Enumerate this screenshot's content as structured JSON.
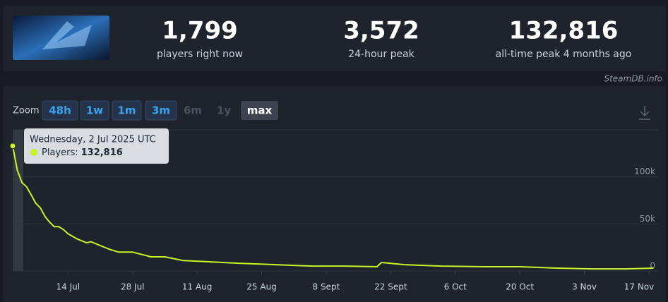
{
  "stats": [
    {
      "value": "1,799",
      "label": "players right now"
    },
    {
      "value": "3,572",
      "label": "24-hour peak"
    },
    {
      "value": "132,816",
      "label": "all-time peak 4 months ago"
    }
  ],
  "watermark": "SteamDB.info",
  "zoom": {
    "label": "Zoom",
    "buttons": [
      {
        "label": "48h",
        "enabled": true,
        "selected": false
      },
      {
        "label": "1w",
        "enabled": true,
        "selected": false
      },
      {
        "label": "1m",
        "enabled": true,
        "selected": false
      },
      {
        "label": "3m",
        "enabled": true,
        "selected": false
      },
      {
        "label": "6m",
        "enabled": false,
        "selected": false
      },
      {
        "label": "1y",
        "enabled": false,
        "selected": false
      },
      {
        "label": "max",
        "enabled": true,
        "selected": true
      }
    ]
  },
  "tooltip": {
    "date": "Wednesday, 2 Jul 2025 UTC",
    "label": "Players:",
    "value": "132,816"
  },
  "chart_data": {
    "type": "line",
    "x": [
      "2025-07-02",
      "2025-07-03",
      "2025-07-04",
      "2025-07-05",
      "2025-07-06",
      "2025-07-07",
      "2025-07-08",
      "2025-07-09",
      "2025-07-10",
      "2025-07-11",
      "2025-07-12",
      "2025-07-13",
      "2025-07-14",
      "2025-07-16",
      "2025-07-18",
      "2025-07-19",
      "2025-07-21",
      "2025-07-23",
      "2025-07-25",
      "2025-07-28",
      "2025-08-01",
      "2025-08-04",
      "2025-08-08",
      "2025-08-14",
      "2025-08-20",
      "2025-08-28",
      "2025-09-05",
      "2025-09-12",
      "2025-09-19",
      "2025-09-20",
      "2025-09-25",
      "2025-10-03",
      "2025-10-12",
      "2025-10-20",
      "2025-10-28",
      "2025-11-05",
      "2025-11-12",
      "2025-11-18"
    ],
    "series": [
      {
        "name": "Players",
        "color": "#c8f52a",
        "values": [
          132816,
          107000,
          94000,
          89500,
          81000,
          72000,
          67000,
          58000,
          52000,
          47000,
          47000,
          44000,
          39500,
          34000,
          30000,
          31000,
          27000,
          23000,
          20000,
          20000,
          15000,
          15000,
          11000,
          9700,
          8200,
          6700,
          5200,
          5200,
          4500,
          9000,
          6700,
          5200,
          4500,
          4500,
          3000,
          2200,
          2200,
          3000
        ]
      }
    ],
    "xlim": [
      "2025-07-02",
      "2025-11-19"
    ],
    "xticks": [
      {
        "value": "2025-07-14",
        "label": "14 Jul"
      },
      {
        "value": "2025-07-28",
        "label": "28 Jul"
      },
      {
        "value": "2025-08-11",
        "label": "11 Aug"
      },
      {
        "value": "2025-08-25",
        "label": "25 Aug"
      },
      {
        "value": "2025-09-08",
        "label": "8 Sept"
      },
      {
        "value": "2025-09-22",
        "label": "22 Sept"
      },
      {
        "value": "2025-10-06",
        "label": "6 Oct"
      },
      {
        "value": "2025-10-20",
        "label": "20 Oct"
      },
      {
        "value": "2025-11-03",
        "label": "3 Nov"
      },
      {
        "value": "2025-11-17",
        "label": "17 Nov"
      }
    ],
    "ylim": [
      0,
      150000
    ],
    "yticks": [
      0,
      {
        "value": 50000,
        "label": "50k"
      },
      {
        "value": 100000,
        "label": "100k"
      }
    ],
    "grid": true
  }
}
